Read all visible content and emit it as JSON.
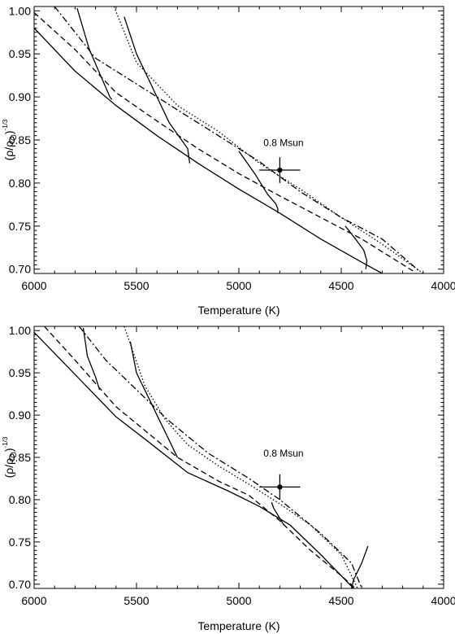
{
  "chart_data": [
    {
      "type": "line",
      "xlabel": "Temperature (K)",
      "ylabel": "(ρ/ρ",
      "ylabel_sub": "O",
      "ylabel_sup": "-1/3",
      "xlim": [
        6000,
        4000
      ],
      "ylim": [
        0.695,
        1.005
      ],
      "xticks": [
        6000,
        5500,
        5000,
        4500,
        4000
      ],
      "xtick_labels": [
        "6000",
        "5500",
        "5000",
        "4500",
        "4000"
      ],
      "yticks": [
        0.7,
        0.75,
        0.8,
        0.85,
        0.9,
        0.95,
        1.0
      ],
      "ytick_labels": [
        "0.70",
        "0.75",
        "0.80",
        "0.85",
        "0.90",
        "0.95",
        "1.00"
      ],
      "grid": false,
      "annotation": {
        "text": "0.8 Msun",
        "x": 4880,
        "y": 0.843
      },
      "datapoint": {
        "x": 4800,
        "y": 0.815,
        "x_err": 100,
        "y_err": 0.015
      },
      "series": [
        {
          "style": "solid",
          "x": [
            6000,
            5800,
            5600,
            5400,
            5200,
            5000,
            4800,
            4600,
            4400,
            4300
          ],
          "y": [
            0.98,
            0.93,
            0.89,
            0.855,
            0.823,
            0.793,
            0.765,
            0.735,
            0.708,
            0.695
          ]
        },
        {
          "style": "dashed",
          "x": [
            6000,
            5800,
            5600,
            5400,
            5200,
            5000,
            4800,
            4600,
            4400,
            4150
          ],
          "y": [
            0.998,
            0.955,
            0.905,
            0.872,
            0.84,
            0.811,
            0.785,
            0.76,
            0.735,
            0.698
          ]
        },
        {
          "style": "dashdot",
          "x": [
            5900,
            5700,
            5500,
            5300,
            5100,
            4900,
            4700,
            4500,
            4300,
            4120
          ],
          "y": [
            1.005,
            0.945,
            0.915,
            0.885,
            0.855,
            0.825,
            0.79,
            0.76,
            0.735,
            0.698
          ]
        },
        {
          "style": "dotted",
          "x": [
            5610,
            5500,
            5300,
            5100,
            4900,
            4700,
            4500,
            4300,
            4100
          ],
          "y": [
            1.005,
            0.94,
            0.89,
            0.86,
            0.823,
            0.793,
            0.76,
            0.729,
            0.695
          ]
        },
        {
          "style": "solid",
          "x": [
            5790,
            5730,
            5630,
            5620
          ],
          "y": [
            1.003,
            0.955,
            0.9,
            0.897
          ]
        },
        {
          "style": "solid",
          "x": [
            5560,
            5500,
            5400,
            5340,
            5250,
            5240
          ],
          "y": [
            0.993,
            0.95,
            0.9,
            0.87,
            0.84,
            0.823
          ]
        },
        {
          "style": "solid",
          "x": [
            5000,
            4920,
            4860,
            4820,
            4810,
            4810
          ],
          "y": [
            0.837,
            0.81,
            0.787,
            0.776,
            0.77,
            0.765
          ]
        },
        {
          "style": "solid",
          "x": [
            4480,
            4430,
            4390,
            4375,
            4380
          ],
          "y": [
            0.75,
            0.735,
            0.722,
            0.71,
            0.7
          ]
        }
      ]
    },
    {
      "type": "line",
      "xlabel": "Temperature (K)",
      "ylabel": "(ρ/ρ",
      "ylabel_sub": "O",
      "ylabel_sup": "-1/3",
      "xlim": [
        6000,
        4000
      ],
      "ylim": [
        0.695,
        1.005
      ],
      "xticks": [
        6000,
        5500,
        5000,
        4500,
        4000
      ],
      "xtick_labels": [
        "6000",
        "5500",
        "5000",
        "4500",
        "4000"
      ],
      "yticks": [
        0.7,
        0.75,
        0.8,
        0.85,
        0.9,
        0.95,
        1.0
      ],
      "ytick_labels": [
        "0.70",
        "0.75",
        "0.80",
        "0.85",
        "0.90",
        "0.95",
        "1.00"
      ],
      "grid": false,
      "annotation": {
        "text": "0.8 Msun",
        "x": 4880,
        "y": 0.851
      },
      "datapoint": {
        "x": 4800,
        "y": 0.815,
        "x_err": 100,
        "y_err": 0.015
      },
      "series": [
        {
          "style": "solid",
          "x": [
            6000,
            5800,
            5600,
            5450,
            5250,
            5050,
            4900,
            4750,
            4600,
            4480,
            4440
          ],
          "y": [
            0.998,
            0.948,
            0.898,
            0.87,
            0.832,
            0.81,
            0.792,
            0.77,
            0.735,
            0.705,
            0.695
          ]
        },
        {
          "style": "dashed",
          "x": [
            5950,
            5800,
            5600,
            5450,
            5300,
            5100,
            4950,
            4800,
            4650,
            4500,
            4430
          ],
          "y": [
            1.005,
            0.965,
            0.91,
            0.88,
            0.85,
            0.822,
            0.805,
            0.775,
            0.74,
            0.71,
            0.695
          ]
        },
        {
          "style": "dashdot",
          "x": [
            5780,
            5650,
            5500,
            5350,
            5150,
            4950,
            4800,
            4600,
            4450,
            4400
          ],
          "y": [
            1.005,
            0.965,
            0.93,
            0.895,
            0.855,
            0.825,
            0.8,
            0.76,
            0.725,
            0.695
          ]
        },
        {
          "style": "dotted",
          "x": [
            5560,
            5460,
            5360,
            5250,
            5100,
            4950,
            4800,
            4650,
            4500,
            4420
          ],
          "y": [
            1.005,
            0.935,
            0.895,
            0.865,
            0.84,
            0.818,
            0.795,
            0.77,
            0.735,
            0.695
          ]
        },
        {
          "style": "solid",
          "x": [
            5760,
            5740,
            5700,
            5680
          ],
          "y": [
            1.003,
            0.97,
            0.945,
            0.93
          ]
        },
        {
          "style": "solid",
          "x": [
            5530,
            5500,
            5420,
            5340,
            5300
          ],
          "y": [
            0.987,
            0.95,
            0.91,
            0.87,
            0.85
          ]
        },
        {
          "style": "solid",
          "x": [
            4840,
            4830,
            4800,
            4780
          ],
          "y": [
            0.797,
            0.79,
            0.778,
            0.77
          ]
        },
        {
          "style": "solid",
          "x": [
            4370,
            4400,
            4440,
            4450
          ],
          "y": [
            0.745,
            0.725,
            0.705,
            0.695
          ]
        }
      ]
    }
  ]
}
